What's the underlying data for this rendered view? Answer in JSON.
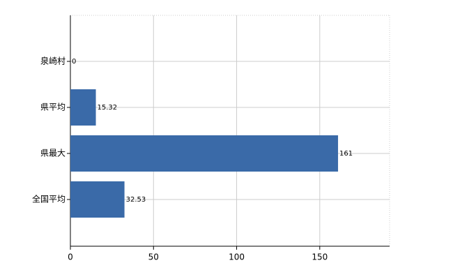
{
  "chart_data": {
    "type": "barh",
    "categories": [
      "泉崎村",
      "県平均",
      "県最大",
      "全国平均"
    ],
    "values": [
      0,
      15.32,
      161,
      32.53
    ],
    "color": "#3a6aa8",
    "xlim": [
      0,
      192
    ],
    "xticks": [
      0,
      50,
      100,
      150
    ],
    "grid": true
  }
}
